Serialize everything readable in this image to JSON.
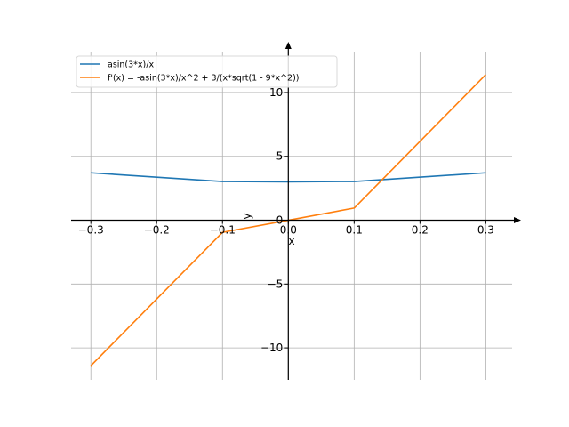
{
  "chart_data": {
    "type": "line",
    "xlabel": "x",
    "ylabel": "y",
    "xlim": [
      -0.33,
      0.34
    ],
    "ylim": [
      -12.5,
      13.2
    ],
    "grid": true,
    "legend_position": "top-left",
    "x_ticks": [
      -0.3,
      -0.2,
      -0.1,
      0.0,
      0.1,
      0.2,
      0.3
    ],
    "x_tick_labels": [
      "−0.3",
      "−0.2",
      "−0.1",
      "0.0",
      "0.1",
      "0.2",
      "0.3"
    ],
    "y_ticks": [
      -10,
      -5,
      0,
      5,
      10
    ],
    "y_tick_labels": [
      "−10",
      "−5",
      "0",
      "5",
      "10"
    ],
    "series": [
      {
        "name": "asin(3*x)/x",
        "color": "#1f77b4",
        "x": [
          -0.3,
          -0.1,
          0.0,
          0.1,
          0.3
        ],
        "y": [
          3.71,
          3.03,
          3.0,
          3.03,
          3.71
        ]
      },
      {
        "name": "f'(x) = -asin(3*x)/x^2 + 3/(x*sqrt(1 - 9*x^2))",
        "color": "#ff7f0e",
        "x": [
          -0.3,
          -0.1,
          0.0,
          0.1,
          0.3
        ],
        "y": [
          -11.4,
          -0.95,
          0.0,
          0.95,
          11.4
        ]
      }
    ]
  }
}
